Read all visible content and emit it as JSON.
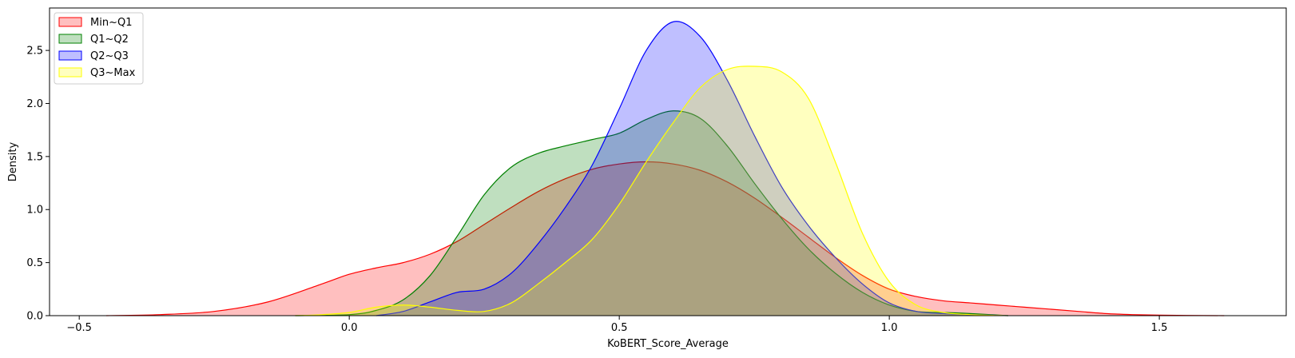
{
  "chart_data": {
    "type": "area",
    "title": "",
    "xlabel": "KoBERT_Score_Average",
    "ylabel": "Density",
    "xlim": [
      -0.555,
      1.735
    ],
    "ylim": [
      0,
      2.9
    ],
    "xticks": [
      -0.5,
      0.0,
      0.5,
      1.0,
      1.5
    ],
    "xtick_labels": [
      "−0.5",
      "0.0",
      "0.5",
      "1.0",
      "1.5"
    ],
    "yticks": [
      0.0,
      0.5,
      1.0,
      1.5,
      2.0,
      2.5
    ],
    "ytick_labels": [
      "0.0",
      "0.5",
      "1.0",
      "1.5",
      "2.0",
      "2.5"
    ],
    "grid": false,
    "legend_position": "top-left",
    "series": [
      {
        "name": "Min~Q1",
        "color": "#ff0000",
        "fill_opacity": 0.25,
        "x": [
          -0.45,
          -0.35,
          -0.25,
          -0.15,
          -0.05,
          0.0,
          0.05,
          0.1,
          0.15,
          0.2,
          0.25,
          0.3,
          0.35,
          0.4,
          0.45,
          0.5,
          0.55,
          0.6,
          0.65,
          0.7,
          0.75,
          0.8,
          0.85,
          0.9,
          0.95,
          1.0,
          1.05,
          1.1,
          1.15,
          1.2,
          1.25,
          1.3,
          1.35,
          1.4,
          1.45,
          1.5,
          1.55,
          1.62
        ],
        "y": [
          0.0,
          0.01,
          0.04,
          0.13,
          0.3,
          0.39,
          0.45,
          0.5,
          0.58,
          0.7,
          0.86,
          1.02,
          1.17,
          1.29,
          1.38,
          1.43,
          1.45,
          1.43,
          1.37,
          1.26,
          1.11,
          0.93,
          0.74,
          0.55,
          0.38,
          0.25,
          0.18,
          0.14,
          0.12,
          0.1,
          0.08,
          0.06,
          0.04,
          0.02,
          0.01,
          0.005,
          0.002,
          0.0
        ]
      },
      {
        "name": "Q1~Q2",
        "color": "#008000",
        "fill_opacity": 0.25,
        "x": [
          -0.1,
          0.0,
          0.05,
          0.1,
          0.15,
          0.2,
          0.25,
          0.3,
          0.35,
          0.4,
          0.45,
          0.5,
          0.55,
          0.6,
          0.65,
          0.7,
          0.75,
          0.8,
          0.85,
          0.9,
          0.95,
          1.0,
          1.05,
          1.1,
          1.15,
          1.22
        ],
        "y": [
          0.0,
          0.01,
          0.05,
          0.15,
          0.38,
          0.75,
          1.14,
          1.4,
          1.53,
          1.6,
          1.66,
          1.72,
          1.85,
          1.93,
          1.86,
          1.6,
          1.25,
          0.92,
          0.63,
          0.4,
          0.22,
          0.1,
          0.04,
          0.03,
          0.02,
          0.0
        ]
      },
      {
        "name": "Q2~Q3",
        "color": "#0000ff",
        "fill_opacity": 0.25,
        "x": [
          0.05,
          0.1,
          0.15,
          0.2,
          0.25,
          0.3,
          0.35,
          0.4,
          0.45,
          0.5,
          0.55,
          0.6,
          0.65,
          0.7,
          0.75,
          0.8,
          0.85,
          0.9,
          0.95,
          1.0,
          1.05,
          1.1,
          1.15,
          1.22
        ],
        "y": [
          0.0,
          0.04,
          0.13,
          0.22,
          0.25,
          0.4,
          0.68,
          1.02,
          1.42,
          1.95,
          2.5,
          2.77,
          2.63,
          2.22,
          1.7,
          1.22,
          0.85,
          0.55,
          0.3,
          0.12,
          0.04,
          0.02,
          0.01,
          0.0
        ]
      },
      {
        "name": "Q3~Max",
        "color": "#ffff00",
        "fill_opacity": 0.25,
        "x": [
          -0.1,
          -0.05,
          0.0,
          0.05,
          0.1,
          0.15,
          0.2,
          0.25,
          0.3,
          0.35,
          0.4,
          0.45,
          0.5,
          0.55,
          0.6,
          0.65,
          0.7,
          0.75,
          0.8,
          0.85,
          0.9,
          0.95,
          1.0,
          1.05,
          1.1,
          1.15,
          1.22
        ],
        "y": [
          0.0,
          0.01,
          0.03,
          0.08,
          0.1,
          0.08,
          0.05,
          0.04,
          0.12,
          0.3,
          0.5,
          0.72,
          1.05,
          1.45,
          1.82,
          2.15,
          2.32,
          2.35,
          2.3,
          2.05,
          1.45,
          0.78,
          0.32,
          0.1,
          0.03,
          0.01,
          0.0
        ]
      }
    ]
  }
}
